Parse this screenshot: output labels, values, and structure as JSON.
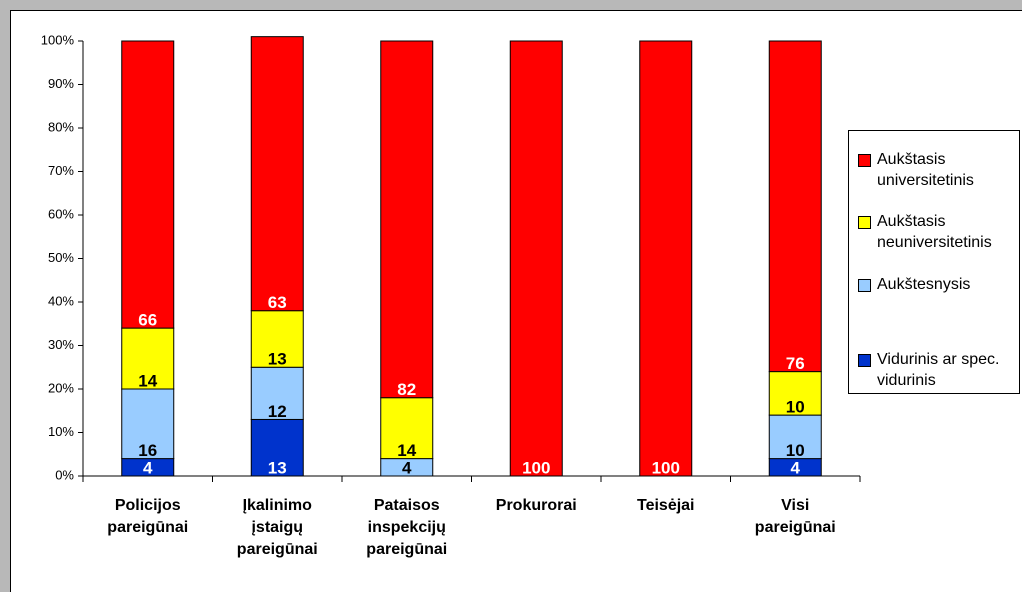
{
  "chart_data": {
    "type": "stacked_bar",
    "categories": [
      [
        "Policijos",
        "pareigūnai"
      ],
      [
        "Įkalinimo",
        "įstaigų",
        "pareigūnai"
      ],
      [
        "Pataisos",
        "inspekcijų",
        "pareigūnai"
      ],
      [
        "Prokurorai"
      ],
      [
        "Teisėjai"
      ],
      [
        "Visi",
        "pareigūnai"
      ]
    ],
    "series": [
      {
        "name": "Vidurinis ar spec. vidurinis",
        "color": "#0033cc",
        "label_color": "#ffffff",
        "values": [
          4,
          13,
          0,
          0,
          0,
          4
        ]
      },
      {
        "name": "Aukštesnysis",
        "color": "#99ccff",
        "label_color": "#000000",
        "values": [
          16,
          12,
          4,
          0,
          0,
          10
        ]
      },
      {
        "name": "Aukštasis neuniversitetinis",
        "color": "#ffff00",
        "label_color": "#000000",
        "values": [
          14,
          13,
          14,
          0,
          0,
          10
        ]
      },
      {
        "name": "Aukštasis universitetinis",
        "color": "#ff0000",
        "label_color": "#ffffff",
        "values": [
          66,
          63,
          82,
          100,
          100,
          76
        ]
      }
    ],
    "ylim": [
      0,
      100
    ],
    "yticks": [
      {
        "value": 0,
        "label": "0%"
      },
      {
        "value": 10,
        "label": "10%"
      },
      {
        "value": 20,
        "label": "20%"
      },
      {
        "value": 30,
        "label": "30%"
      },
      {
        "value": 40,
        "label": "40%"
      },
      {
        "value": 50,
        "label": "50%"
      },
      {
        "value": 60,
        "label": "60%"
      },
      {
        "value": 70,
        "label": "70%"
      },
      {
        "value": 80,
        "label": "80%"
      },
      {
        "value": 90,
        "label": "90%"
      },
      {
        "value": 100,
        "label": "100%"
      }
    ],
    "grid": false,
    "legend": "right"
  }
}
